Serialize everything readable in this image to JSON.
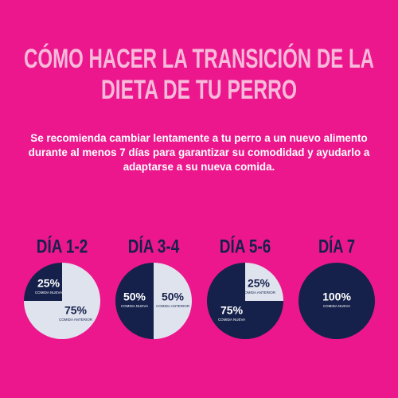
{
  "title_lines": [
    "CÓMO HACER LA TRANSICIÓN DE LA",
    "DIETA DE TU PERRO"
  ],
  "description": "Se recomienda cambiar lentamente a tu perro a un nuevo alimento durante al menos 7 días para garantizar su comodidad y ayudarlo a adaptarse a su nueva comida.",
  "chart_data": [
    {
      "type": "pie",
      "title": "DÍA 1-2",
      "categories": [
        "COMIDA NUEVA",
        "COMIDA ANTERIOR"
      ],
      "values": [
        25,
        75
      ],
      "value_labels": [
        "25%",
        "75%"
      ],
      "colors": [
        "#15214b",
        "#dfe3ee"
      ]
    },
    {
      "type": "pie",
      "title": "DÍA 3-4",
      "categories": [
        "COMIDA NUEVA",
        "COMIDA ANTERIOR"
      ],
      "values": [
        50,
        50
      ],
      "value_labels": [
        "50%",
        "50%"
      ],
      "colors": [
        "#15214b",
        "#dfe3ee"
      ]
    },
    {
      "type": "pie",
      "title": "DÍA 5-6",
      "categories": [
        "COMIDA NUEVA",
        "COMIDA ANTERIOR"
      ],
      "values": [
        75,
        25
      ],
      "value_labels": [
        "75%",
        "25%"
      ],
      "colors": [
        "#15214b",
        "#dfe3ee"
      ]
    },
    {
      "type": "pie",
      "title": "DÍA 7",
      "categories": [
        "COMIDA NUEVA"
      ],
      "values": [
        100
      ],
      "value_labels": [
        "100%"
      ],
      "colors": [
        "#15214b"
      ]
    }
  ]
}
